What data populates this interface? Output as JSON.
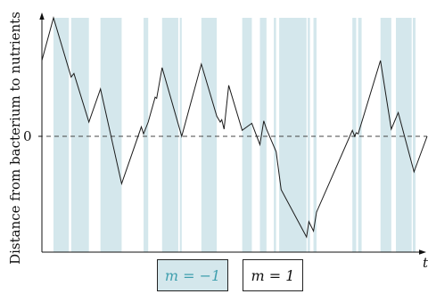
{
  "chart_data": {
    "type": "line",
    "ylabel": "Distance from bacterium to nutrients",
    "xlabel": "t",
    "y_tick_labels": [
      "0"
    ],
    "zero_line": "dashed",
    "legend_location": "bottom",
    "legend": [
      {
        "label": "m = −1",
        "m": -1,
        "color": "#d4e7ec",
        "text_color": "#3f9fae"
      },
      {
        "label": "m = 1",
        "m": 1,
        "color": "#ffffff",
        "text_color": "#111111"
      }
    ],
    "xlim": [
      0,
      100
    ],
    "ylim": [
      -1.0,
      1.0
    ],
    "shaded_intervals": [
      [
        3.0,
        7.0
      ],
      [
        7.6,
        12.2
      ],
      [
        15.2,
        20.7
      ],
      [
        26.4,
        27.6
      ],
      [
        31.2,
        35.4
      ],
      [
        35.8,
        36.3
      ],
      [
        41.4,
        45.4
      ],
      [
        52.0,
        54.5
      ],
      [
        56.6,
        58.3
      ],
      [
        60.2,
        60.8
      ],
      [
        61.6,
        68.7
      ],
      [
        69.0,
        69.6
      ],
      [
        70.5,
        71.3
      ],
      [
        80.6,
        81.6
      ],
      [
        82.1,
        83.0
      ],
      [
        87.9,
        90.7
      ],
      [
        91.9,
        96.0
      ],
      [
        96.3,
        97.0
      ]
    ],
    "series": [
      {
        "x": [
          0,
          3.0,
          7.6,
          8.3,
          12.2,
          15.2,
          20.7,
          25.8,
          26.4,
          27.6,
          29.4,
          29.8,
          31.2,
          36.3,
          41.4,
          45.4,
          46.3,
          46.7,
          47.3,
          48.5,
          52.0,
          54.5,
          56.6,
          57.6,
          58.3,
          60.8,
          62.1,
          68.7,
          69.3,
          70.5,
          71.3,
          80.6,
          81.2,
          81.6,
          82.1,
          87.9,
          90.7,
          92.5,
          96.6,
          100
        ],
        "y": [
          0.64,
          1.0,
          0.5,
          0.53,
          0.12,
          0.4,
          -0.4,
          0.08,
          0.02,
          0.12,
          0.33,
          0.32,
          0.58,
          0.0,
          0.61,
          0.17,
          0.12,
          0.14,
          0.06,
          0.43,
          0.05,
          0.11,
          -0.07,
          0.13,
          0.06,
          -0.13,
          -0.45,
          -0.85,
          -0.72,
          -0.8,
          -0.64,
          0.05,
          0.0,
          0.03,
          0.02,
          0.64,
          0.06,
          0.2,
          -0.3,
          0.0
        ]
      }
    ]
  }
}
